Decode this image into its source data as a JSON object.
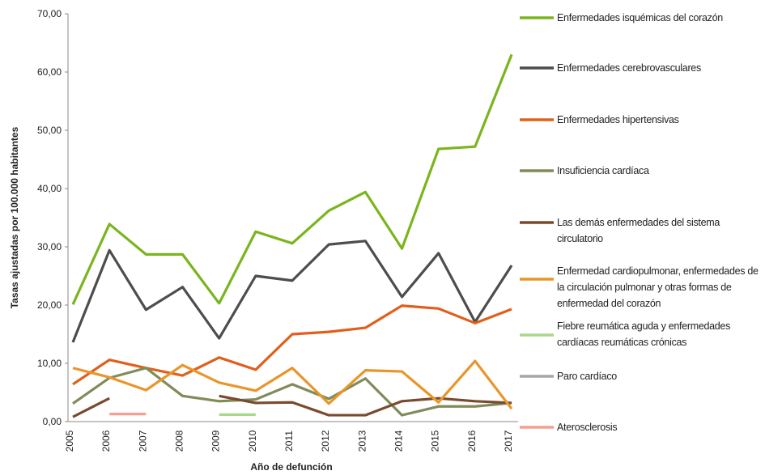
{
  "chart_data": {
    "type": "line",
    "x_label": "Año de defunción",
    "y_label": "Tasas ajustadas por 100.000 habitantes",
    "categories": [
      "2005",
      "2006",
      "2007",
      "2008",
      "2009",
      "2010",
      "2011",
      "2012",
      "2013",
      "2014",
      "2015",
      "2016",
      "2017"
    ],
    "ylim": [
      0,
      70
    ],
    "yticks": [
      {
        "value": 0,
        "label": "0,00"
      },
      {
        "value": 10,
        "label": "10,00"
      },
      {
        "value": 20,
        "label": "20,00"
      },
      {
        "value": 30,
        "label": "30,00"
      },
      {
        "value": 40,
        "label": "40,00"
      },
      {
        "value": 50,
        "label": "50,00"
      },
      {
        "value": 60,
        "label": "60,00"
      },
      {
        "value": 70,
        "label": "70,00"
      }
    ],
    "legend": "right",
    "series": [
      {
        "name": "Enfermedades isquémicas del corazón",
        "color": "#7ab51d",
        "values": [
          20.1,
          33.9,
          28.7,
          28.7,
          20.3,
          32.6,
          30.6,
          36.2,
          39.4,
          29.7,
          46.8,
          47.2,
          63.0
        ]
      },
      {
        "name": "Enfermedades cerebrovasculares",
        "color": "#4d4d4d",
        "values": [
          13.6,
          29.4,
          19.2,
          23.1,
          14.3,
          25.0,
          24.2,
          30.4,
          31.0,
          21.4,
          28.9,
          17.1,
          26.8
        ]
      },
      {
        "name": "Enfermedades hipertensivas",
        "color": "#e0601b",
        "values": [
          6.4,
          10.6,
          9.2,
          7.9,
          11.0,
          8.9,
          15.0,
          15.4,
          16.1,
          19.9,
          19.4,
          16.9,
          19.3
        ]
      },
      {
        "name": "Insuficiencia cardíaca",
        "color": "#7f8c5a",
        "values": [
          3.1,
          7.5,
          9.2,
          4.4,
          3.5,
          3.8,
          6.4,
          3.9,
          7.4,
          1.1,
          2.6,
          2.6,
          3.2
        ]
      },
      {
        "name": "Las demás enfermedades del sistema circulatorio",
        "color": "#7b4a2e",
        "values": [
          0.8,
          4.0,
          null,
          null,
          4.4,
          3.2,
          3.3,
          1.1,
          1.1,
          3.5,
          4.0,
          3.5,
          3.2
        ]
      },
      {
        "name": "Enfermedad cardiopulmonar, enfermedades de la circulación pulmonar y otras formas de enfermedad del corazón",
        "color": "#e8962a",
        "values": [
          9.2,
          7.6,
          5.4,
          9.7,
          6.7,
          5.3,
          9.2,
          3.1,
          8.8,
          8.6,
          3.3,
          10.4,
          2.2
        ]
      },
      {
        "name": "Fiebre reumática aguda y enfermedades cardíacas reumáticas crónicas",
        "color": "#a8d88a",
        "values": [
          null,
          null,
          null,
          null,
          1.2,
          1.2,
          null,
          null,
          null,
          null,
          null,
          null,
          null
        ]
      },
      {
        "name": "Paro cardíaco",
        "color": "#a6a6a6",
        "values": [
          null,
          null,
          null,
          null,
          null,
          null,
          null,
          null,
          null,
          null,
          null,
          null,
          null
        ]
      },
      {
        "name": "Aterosclerosis",
        "color": "#f4a090",
        "values": [
          null,
          1.3,
          1.3,
          null,
          null,
          null,
          null,
          null,
          null,
          null,
          null,
          null,
          null
        ]
      }
    ]
  }
}
